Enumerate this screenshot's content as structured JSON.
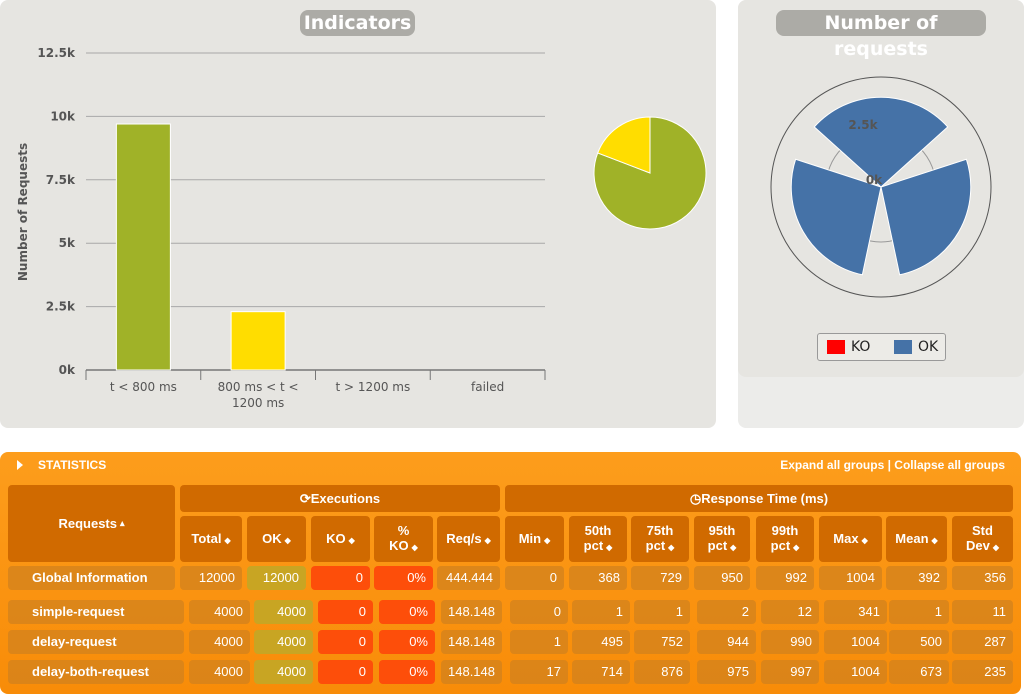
{
  "indicators": {
    "title": "Indicators"
  },
  "requests_panel": {
    "title": "Number of requests",
    "legend": [
      {
        "label": "KO",
        "color": "#ff0000"
      },
      {
        "label": "OK",
        "color": "#4572a7"
      }
    ]
  },
  "chart_data": [
    {
      "type": "bar",
      "title": "Indicators",
      "xlabel": "",
      "ylabel": "Number of Requests",
      "categories": [
        "t < 800 ms",
        "800 ms < t < 1200 ms",
        "t > 1200 ms",
        "failed"
      ],
      "category_lines": [
        [
          "t < 800 ms"
        ],
        [
          "800 ms < t <",
          "1200 ms"
        ],
        [
          "t > 1200 ms"
        ],
        [
          "failed"
        ]
      ],
      "values": [
        9700,
        2300,
        0,
        0
      ],
      "colors": [
        "#a0b228",
        "#ffdd00",
        "#ff9916",
        "#ff0000"
      ],
      "yticks": [
        "0k",
        "2.5k",
        "5k",
        "7.5k",
        "10k",
        "12.5k"
      ],
      "ylim": [
        0,
        12500
      ],
      "grid": true
    },
    {
      "type": "pie",
      "labels": [
        "t < 800 ms",
        "800 ms < t < 1200 ms",
        "t > 1200 ms",
        "failed"
      ],
      "values": [
        9700,
        2300,
        0,
        0
      ],
      "colors": [
        "#a0b228",
        "#ffdd00",
        "#ff9916",
        "#ff0000"
      ]
    },
    {
      "type": "polar",
      "title": "Number of requests",
      "categories": [
        "simple-request",
        "delay-request",
        "delay-both-request"
      ],
      "series": [
        {
          "name": "KO",
          "values": [
            0,
            0,
            0
          ],
          "color": "#ff0000"
        },
        {
          "name": "OK",
          "values": [
            4000,
            4000,
            4000
          ],
          "color": "#4572a7"
        }
      ],
      "rticks": [
        "0k",
        "2.5k"
      ],
      "rlim": [
        0,
        5000
      ],
      "legend": "bottom"
    }
  ],
  "statistics": {
    "title": "STATISTICS",
    "expand_label": "Expand all groups",
    "separator": " | ",
    "collapse_label": "Collapse all groups",
    "requests_header": "Requests",
    "executions_header": "Executions",
    "response_header": "Response Time (ms)",
    "exec_columns": [
      [
        "Total"
      ],
      [
        "OK"
      ],
      [
        "KO"
      ],
      [
        "%",
        "KO"
      ],
      [
        "Req/s"
      ]
    ],
    "resp_columns": [
      [
        "Min"
      ],
      [
        "50th",
        "pct"
      ],
      [
        "75th",
        "pct"
      ],
      [
        "95th",
        "pct"
      ],
      [
        "99th",
        "pct"
      ],
      [
        "Max"
      ],
      [
        "Mean"
      ],
      [
        "Std",
        "Dev"
      ]
    ],
    "global": {
      "name": "Global Information",
      "values": [
        "12000",
        "12000",
        "0",
        "0%",
        "444.444",
        "0",
        "368",
        "729",
        "950",
        "992",
        "1004",
        "392",
        "356"
      ]
    },
    "rows": [
      {
        "name": "simple-request",
        "values": [
          "4000",
          "4000",
          "0",
          "0%",
          "148.148",
          "0",
          "1",
          "1",
          "2",
          "12",
          "341",
          "1",
          "11"
        ]
      },
      {
        "name": "delay-request",
        "values": [
          "4000",
          "4000",
          "0",
          "0%",
          "148.148",
          "1",
          "495",
          "752",
          "944",
          "990",
          "1004",
          "500",
          "287"
        ]
      },
      {
        "name": "delay-both-request",
        "values": [
          "4000",
          "4000",
          "0",
          "0%",
          "148.148",
          "17",
          "714",
          "876",
          "975",
          "997",
          "1004",
          "673",
          "235"
        ]
      }
    ]
  }
}
